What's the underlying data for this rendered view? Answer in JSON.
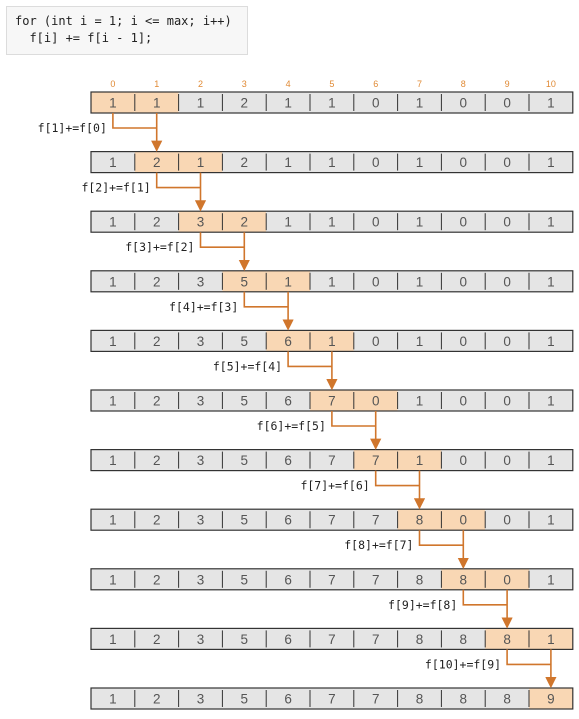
{
  "code": {
    "lines": [
      "for (int i = 1; i <= max; i++)",
      "  f[i] += f[i - 1];"
    ]
  },
  "indices": [
    "0",
    "1",
    "2",
    "3",
    "4",
    "5",
    "6",
    "7",
    "8",
    "9",
    "10"
  ],
  "rows": [
    {
      "values": [
        "1",
        "1",
        "1",
        "2",
        "1",
        "1",
        "0",
        "1",
        "0",
        "0",
        "1"
      ],
      "highlight": [
        0,
        1
      ]
    },
    {
      "values": [
        "1",
        "2",
        "1",
        "2",
        "1",
        "1",
        "0",
        "1",
        "0",
        "0",
        "1"
      ],
      "highlight": [
        1,
        2
      ]
    },
    {
      "values": [
        "1",
        "2",
        "3",
        "2",
        "1",
        "1",
        "0",
        "1",
        "0",
        "0",
        "1"
      ],
      "highlight": [
        2,
        3
      ]
    },
    {
      "values": [
        "1",
        "2",
        "3",
        "5",
        "1",
        "1",
        "0",
        "1",
        "0",
        "0",
        "1"
      ],
      "highlight": [
        3,
        4
      ]
    },
    {
      "values": [
        "1",
        "2",
        "3",
        "5",
        "6",
        "1",
        "0",
        "1",
        "0",
        "0",
        "1"
      ],
      "highlight": [
        4,
        5
      ]
    },
    {
      "values": [
        "1",
        "2",
        "3",
        "5",
        "6",
        "7",
        "0",
        "1",
        "0",
        "0",
        "1"
      ],
      "highlight": [
        5,
        6
      ]
    },
    {
      "values": [
        "1",
        "2",
        "3",
        "5",
        "6",
        "7",
        "7",
        "1",
        "0",
        "0",
        "1"
      ],
      "highlight": [
        6,
        7
      ]
    },
    {
      "values": [
        "1",
        "2",
        "3",
        "5",
        "6",
        "7",
        "7",
        "8",
        "0",
        "0",
        "1"
      ],
      "highlight": [
        7,
        8
      ]
    },
    {
      "values": [
        "1",
        "2",
        "3",
        "5",
        "6",
        "7",
        "7",
        "8",
        "8",
        "0",
        "1"
      ],
      "highlight": [
        8,
        9
      ]
    },
    {
      "values": [
        "1",
        "2",
        "3",
        "5",
        "6",
        "7",
        "7",
        "8",
        "8",
        "8",
        "1"
      ],
      "highlight": [
        9,
        10
      ]
    },
    {
      "values": [
        "1",
        "2",
        "3",
        "5",
        "6",
        "7",
        "7",
        "8",
        "8",
        "8",
        "9"
      ],
      "highlight": [
        10
      ]
    }
  ],
  "steps": [
    {
      "label": "f[1]+=f[0]",
      "from": 0,
      "to": 1
    },
    {
      "label": "f[2]+=f[1]",
      "from": 1,
      "to": 2
    },
    {
      "label": "f[3]+=f[2]",
      "from": 2,
      "to": 3
    },
    {
      "label": "f[4]+=f[3]",
      "from": 3,
      "to": 4
    },
    {
      "label": "f[5]+=f[4]",
      "from": 4,
      "to": 5
    },
    {
      "label": "f[6]+=f[5]",
      "from": 5,
      "to": 6
    },
    {
      "label": "f[7]+=f[6]",
      "from": 6,
      "to": 7
    },
    {
      "label": "f[8]+=f[7]",
      "from": 7,
      "to": 8
    },
    {
      "label": "f[9]+=f[8]",
      "from": 8,
      "to": 9
    },
    {
      "label": "f[10]+=f[9]",
      "from": 9,
      "to": 10
    }
  ],
  "colors": {
    "cell_fill": "#e5e5e5",
    "cell_stroke": "#333333",
    "highlight_fill": "#f9d7b4",
    "arrow": "#d0762c",
    "index": "#e08a35"
  }
}
